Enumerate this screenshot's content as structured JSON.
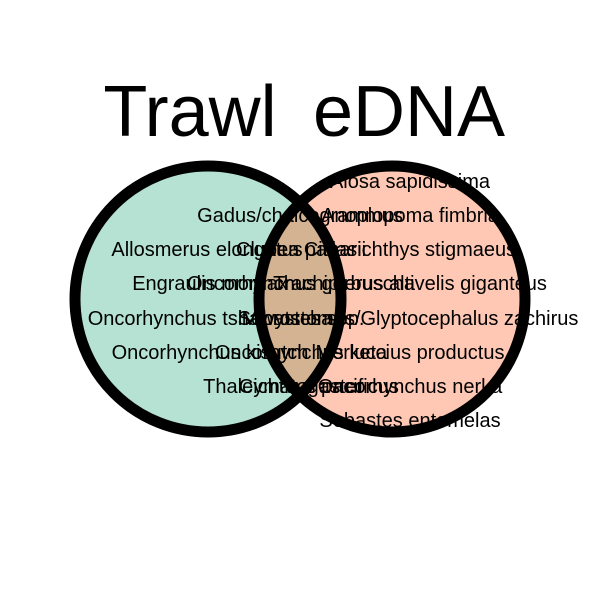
{
  "colors": {
    "trawl_fill": "#b5e2d2",
    "edna_fill": "#fec8b4",
    "overlap_fill": "#d4b392",
    "outline": "#000000",
    "text": "#000000"
  },
  "sets": {
    "left": {
      "title": "Trawl"
    },
    "right": {
      "title": "eDNA"
    }
  },
  "labels": {
    "trawl_only": [
      "Gadus/chalcogrammus",
      "Allosmerus elongatus",
      "Engraulis mordax",
      "Oncorhynchus tshawytscha",
      "Oncorhynchus kisutch",
      "Thaleichthys pacificus"
    ],
    "shared": [
      "Clupea pallasii",
      "Oncorhynchus gorbuscha",
      "Sebastes spp.",
      "Oncorhynchus keta",
      "Cymatogaster"
    ],
    "edna_only": [
      "Alosa sapidissima",
      "Anoplopoma fimbria",
      "Citharichthys stigmaeus",
      "Trachipterus altivelis giganteus",
      "Microstomus/Glyptocephalus zachirus",
      "Merluccius productus",
      "Oncorhynchus nerka",
      "Sebastes entomelas"
    ]
  }
}
